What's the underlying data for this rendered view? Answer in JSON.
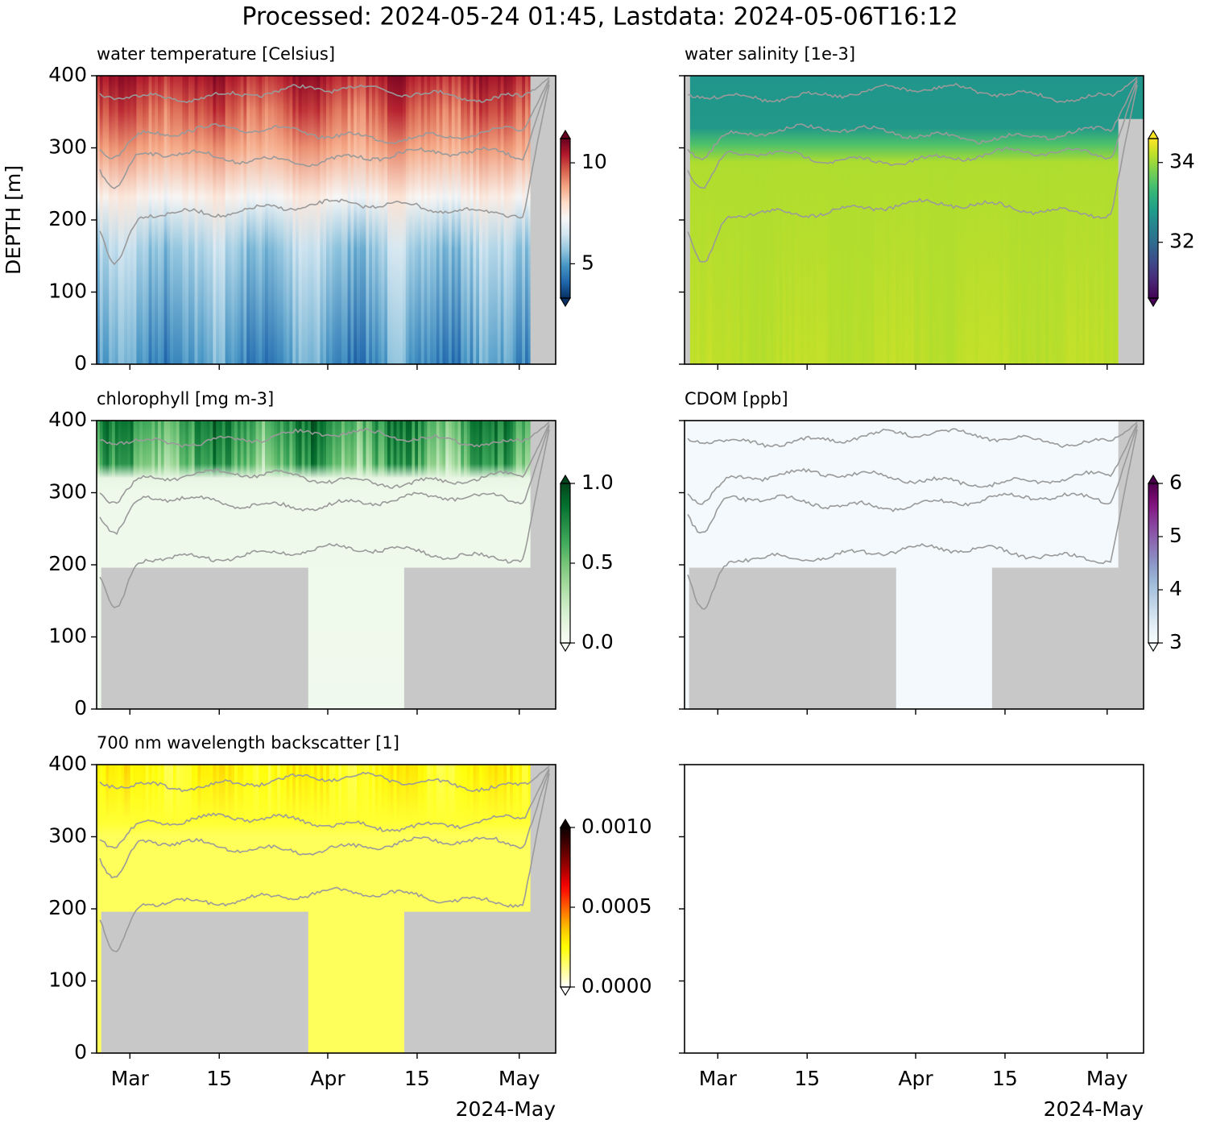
{
  "title": "Processed: 2024-05-24 01:45, Lastdata: 2024-05-06T16:12",
  "chart_data": [
    {
      "type": "heatmap",
      "title": "water temperature [Celsius]",
      "ylabel": "DEPTH [m]",
      "ylim": [
        400,
        0
      ],
      "yticks": [
        0,
        100,
        200,
        300,
        400
      ],
      "xlim": [
        "2024-02-24T19:00",
        "2024-05-06T17:00"
      ],
      "xticks": [
        "2024-03-01",
        "2024-03-15",
        "2024-04-01",
        "2024-04-15",
        "2024-05-01"
      ],
      "colormap": "RdBu_r",
      "clim": [
        3.3,
        11.2
      ],
      "cticks": [
        5,
        10
      ],
      "extend": "both"
    },
    {
      "type": "heatmap",
      "title": "water salinity [1e-3]",
      "yticklabels": false,
      "ylim": [
        400,
        0
      ],
      "yticks": [
        0,
        100,
        200,
        300,
        400
      ],
      "xlim": [
        "2024-02-24T19:00",
        "2024-05-06T17:00"
      ],
      "xticks": [
        "2024-03-01",
        "2024-03-15",
        "2024-04-01",
        "2024-04-15",
        "2024-05-01"
      ],
      "colormap": "viridis",
      "clim": [
        30.6,
        34.6
      ],
      "cticks": [
        32,
        34
      ],
      "extend": "both"
    },
    {
      "type": "heatmap",
      "title": "chlorophyll [mg m-3]",
      "ylim": [
        400,
        0
      ],
      "yticks": [
        0,
        100,
        200,
        300,
        400
      ],
      "xlim": [
        "2024-02-24T19:00",
        "2024-05-06T17:00"
      ],
      "xticks": [
        "2024-03-01",
        "2024-03-15",
        "2024-04-01",
        "2024-04-15",
        "2024-05-01"
      ],
      "colormap": "Greens",
      "clim": [
        0,
        1
      ],
      "cticks": [
        {
          "value": 0,
          "label": "0.0"
        },
        0.5,
        {
          "value": 1,
          "label": "1.0"
        }
      ],
      "extend": "both"
    },
    {
      "type": "heatmap",
      "title": "CDOM [ppb]",
      "yticklabels": false,
      "ylim": [
        400,
        0
      ],
      "yticks": [
        0,
        100,
        200,
        300,
        400
      ],
      "xlim": [
        "2024-02-24T19:00",
        "2024-05-06T17:00"
      ],
      "xticks": [
        "2024-03-01",
        "2024-03-15",
        "2024-04-01",
        "2024-04-15",
        "2024-05-01"
      ],
      "colormap": "BuPu",
      "clim": [
        3,
        6
      ],
      "cticks": [
        3,
        4,
        5,
        6
      ],
      "extend": "both"
    },
    {
      "type": "heatmap",
      "title": "700 nm wavelength backscatter [1]",
      "ylim": [
        400,
        0
      ],
      "yticks": [
        0,
        100,
        200,
        300,
        400
      ],
      "xlim": [
        "2024-02-24T19:00",
        "2024-05-06T17:00"
      ],
      "xticks": [
        {
          "value": "2024-03-01",
          "label": "Mar"
        },
        {
          "value": "2024-03-15",
          "label": "15"
        },
        {
          "value": "2024-04-01",
          "label": "Apr"
        },
        {
          "value": "2024-04-15",
          "label": "15"
        },
        {
          "value": "2024-05-01",
          "label": "May"
        }
      ],
      "xoffset_label": "2024-May",
      "colormap": "hot_r",
      "clim": [
        0,
        0.001
      ],
      "cticks": [
        {
          "value": 0,
          "label": "0.0000"
        },
        0.0005,
        {
          "value": 0.001,
          "label": "0.0010"
        }
      ],
      "extend": "both"
    },
    {
      "type": "empty",
      "yticklabels": false,
      "ylim": [
        400,
        0
      ],
      "yticks": [
        0,
        100,
        200,
        300,
        400
      ],
      "xlim": [
        "2024-02-24T19:00",
        "2024-05-06T17:00"
      ],
      "xticks": [
        {
          "value": "2024-03-01",
          "label": "Mar"
        },
        {
          "value": "2024-03-15",
          "label": "15"
        },
        {
          "value": "2024-04-01",
          "label": "Apr"
        },
        {
          "value": "2024-04-15",
          "label": "15"
        },
        {
          "value": "2024-05-01",
          "label": "May"
        }
      ],
      "xoffset_label": "2024-May"
    }
  ]
}
